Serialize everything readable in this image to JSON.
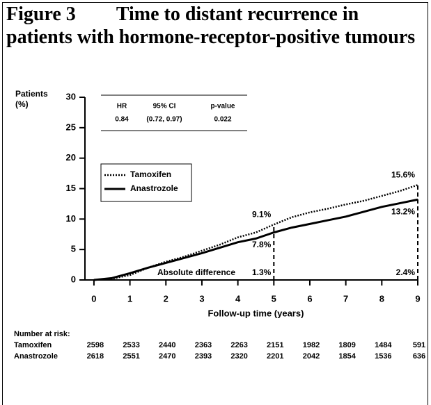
{
  "chart_data": {
    "type": "line",
    "figure_label": "Figure 3",
    "title": "Time to distant recurrence in patients with hormone-receptor-positive tumours",
    "ylabel": "Patients (%)",
    "xlabel": "Follow-up time (years)",
    "x": [
      0,
      0.5,
      1,
      1.5,
      2,
      2.5,
      3,
      3.5,
      4,
      4.5,
      5,
      5.5,
      6,
      6.5,
      7,
      7.5,
      8,
      8.5,
      9
    ],
    "series": [
      {
        "name": "Tamoxifen",
        "color": "#000000",
        "style": "dotted",
        "values": [
          0,
          0.2,
          0.8,
          2,
          3,
          3.8,
          4.8,
          5.8,
          7,
          7.8,
          9.1,
          10.3,
          11.1,
          11.7,
          12.4,
          13,
          13.8,
          14.6,
          15.6
        ]
      },
      {
        "name": "Anastrozole",
        "color": "#000000",
        "style": "solid",
        "values": [
          0,
          0.3,
          1.1,
          2,
          2.8,
          3.6,
          4.4,
          5.3,
          6.2,
          6.8,
          7.8,
          8.6,
          9.2,
          9.8,
          10.4,
          11.2,
          12,
          12.6,
          13.2
        ]
      }
    ],
    "xlim": [
      -0.25,
      9
    ],
    "ylim": [
      0,
      30
    ],
    "xticks": [
      0,
      1,
      2,
      3,
      4,
      5,
      6,
      7,
      8,
      9
    ],
    "yticks": [
      0,
      5,
      10,
      15,
      20,
      25,
      30
    ],
    "grid": false,
    "stats_table": {
      "headers": [
        "HR",
        "95% CI",
        "p-value"
      ],
      "values": [
        "0.84",
        "(0.72, 0.97)",
        "0.022"
      ]
    },
    "differences": {
      "label": "Absolute difference",
      "x": [
        5,
        9
      ],
      "tamoxifen": [
        9.1,
        15.6
      ],
      "tamoxifen_labels": [
        "9.1%",
        "15.6%"
      ],
      "anastrozole": [
        7.8,
        13.2
      ],
      "anastrozole_labels": [
        "7.8%",
        "13.2%"
      ],
      "difference": [
        1.3,
        2.4
      ],
      "difference_labels": [
        "1.3%",
        "2.4%"
      ]
    },
    "at_risk": {
      "label": "Number at risk:",
      "rows": [
        {
          "name": "Tamoxifen",
          "values": [
            "2598",
            "2533",
            "2440",
            "2363",
            "2263",
            "2151",
            "1982",
            "1809",
            "1484",
            "591"
          ]
        },
        {
          "name": "Anastrozole",
          "values": [
            "2618",
            "2551",
            "2470",
            "2393",
            "2320",
            "2201",
            "2042",
            "1854",
            "1536",
            "636"
          ]
        }
      ]
    }
  }
}
